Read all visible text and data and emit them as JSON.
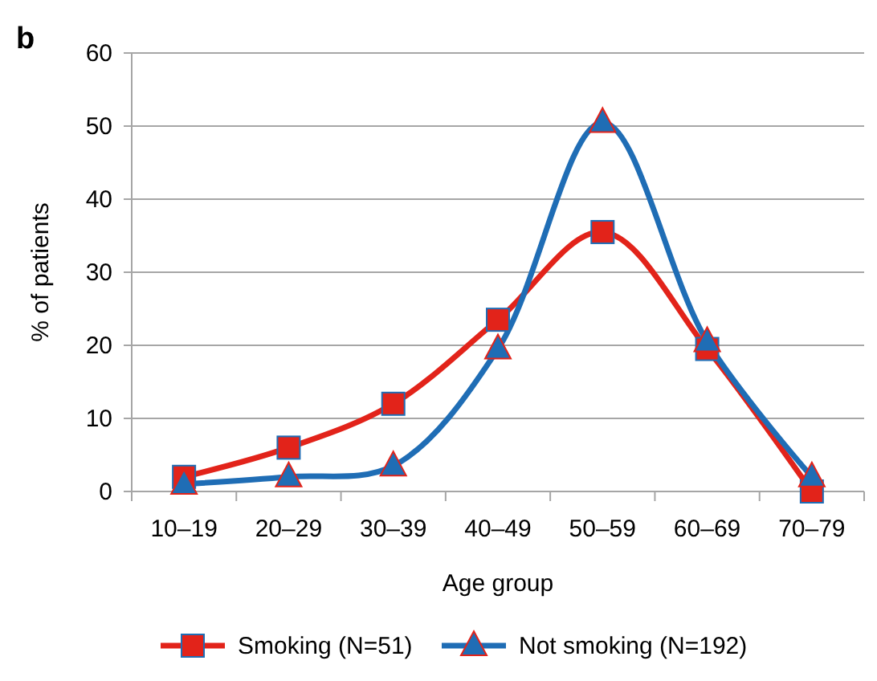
{
  "chart_data": {
    "type": "line",
    "title": "b",
    "xlabel": "Age group",
    "ylabel": "% of patients",
    "categories": [
      "10–19",
      "20–29",
      "30–39",
      "40–49",
      "50–59",
      "60–69",
      "70–79"
    ],
    "series": [
      {
        "name": "Smoking (N=51)",
        "color": "#e2231a",
        "marker": "square",
        "values": [
          2,
          6,
          12,
          23.5,
          35.5,
          19.5,
          0
        ]
      },
      {
        "name": "Not smoking (N=192)",
        "color": "#1f6db5",
        "marker": "triangle",
        "values": [
          1,
          2,
          3.5,
          19.5,
          50.5,
          20.5,
          2
        ]
      }
    ],
    "ylim": [
      0,
      60
    ],
    "yticks": [
      0,
      10,
      20,
      30,
      40,
      50,
      60
    ],
    "grid": "y",
    "legend": "bottom",
    "line_style": "solid"
  }
}
